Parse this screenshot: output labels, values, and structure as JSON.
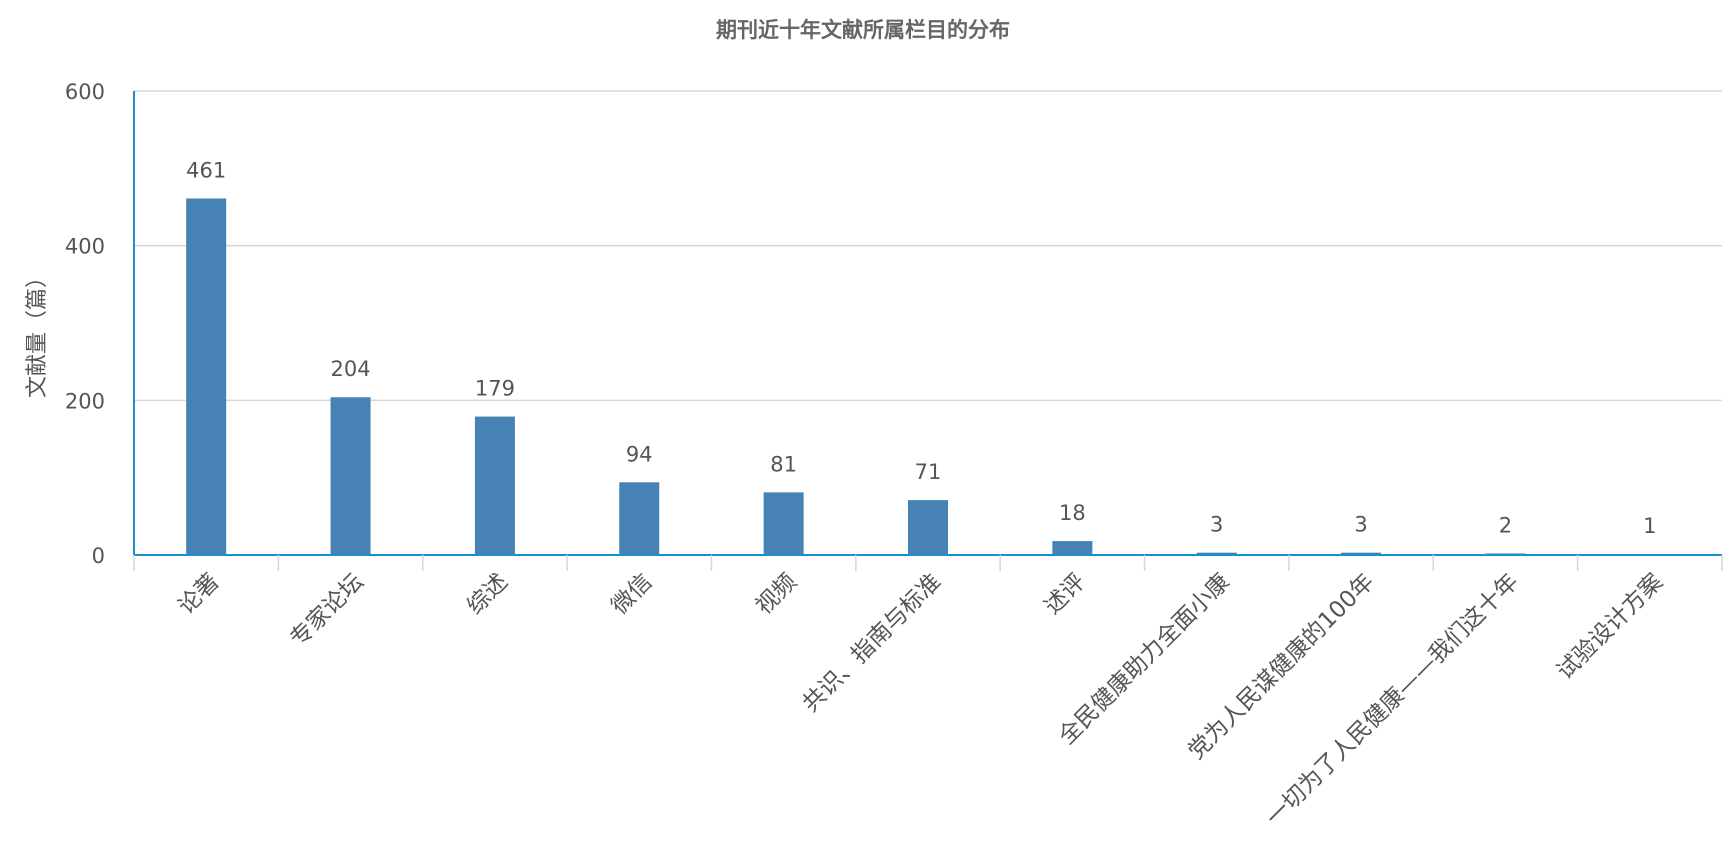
{
  "chart_data": {
    "type": "bar",
    "title": "期刊近十年文献所属栏目的分布",
    "ylabel": "文献量（篇）",
    "xlabel": "",
    "ylim": [
      0,
      600
    ],
    "yticks": [
      0,
      200,
      400,
      600
    ],
    "grid": true,
    "legend": "none",
    "categories": [
      "论著",
      "专家论坛",
      "综述",
      "微信",
      "视频",
      "共识、指南与标准",
      "述评",
      "全民健康助力全面小康",
      "党为人民谋健康的100年",
      "一切为了人民健康——我们这十年",
      "试验设计方案"
    ],
    "values": [
      461,
      204,
      179,
      94,
      81,
      71,
      18,
      3,
      3,
      2,
      1
    ],
    "colors": {
      "bar": "#4682b4",
      "axis": "#1a8fd0",
      "grid": "#d4d8dc",
      "text": "#555555",
      "title": "#666666"
    }
  }
}
